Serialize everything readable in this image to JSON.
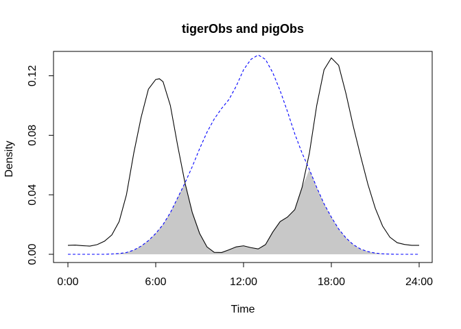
{
  "chart_data": {
    "type": "line",
    "title": "tigerObs and pigObs",
    "xlabel": "Time",
    "ylabel": "Density",
    "xlim": [
      0,
      24
    ],
    "ylim": [
      0,
      0.135
    ],
    "x_ticks": [
      {
        "value": 0,
        "label": "0:00"
      },
      {
        "value": 6,
        "label": "6:00"
      },
      {
        "value": 12,
        "label": "12:00"
      },
      {
        "value": 18,
        "label": "18:00"
      },
      {
        "value": 24,
        "label": "24:00"
      }
    ],
    "y_ticks": [
      {
        "value": 0,
        "label": "0.00"
      },
      {
        "value": 0.04,
        "label": "0.04"
      },
      {
        "value": 0.08,
        "label": "0.08"
      },
      {
        "value": 0.12,
        "label": "0.12"
      }
    ],
    "grid": false,
    "overlap_fill": "#c8c8c8",
    "series": [
      {
        "key": "tiger",
        "color": "#000000",
        "style": "solid",
        "x": [
          0,
          0.5,
          1,
          1.5,
          2,
          2.5,
          3,
          3.5,
          4,
          4.5,
          5,
          5.5,
          6,
          6.25,
          6.5,
          7,
          7.5,
          8,
          8.5,
          9,
          9.5,
          10,
          10.5,
          11,
          11.5,
          12,
          12.5,
          13,
          13.5,
          14,
          14.5,
          15,
          15.5,
          16,
          16.5,
          17,
          17.5,
          18,
          18.5,
          19,
          19.5,
          20,
          20.5,
          21,
          21.5,
          22,
          22.5,
          23,
          23.5,
          24
        ],
        "y": [
          0.006,
          0.0062,
          0.0058,
          0.0055,
          0.0065,
          0.0088,
          0.013,
          0.022,
          0.04,
          0.068,
          0.092,
          0.111,
          0.1175,
          0.118,
          0.116,
          0.1,
          0.073,
          0.048,
          0.028,
          0.014,
          0.005,
          0.0013,
          0.0012,
          0.003,
          0.005,
          0.0057,
          0.0045,
          0.0036,
          0.0065,
          0.015,
          0.022,
          0.025,
          0.03,
          0.045,
          0.068,
          0.1,
          0.124,
          0.132,
          0.127,
          0.108,
          0.086,
          0.066,
          0.047,
          0.031,
          0.019,
          0.0115,
          0.0078,
          0.0066,
          0.006,
          0.006
        ]
      },
      {
        "key": "pig",
        "color": "#0000ff",
        "style": "dashed",
        "x": [
          0,
          0.5,
          1,
          1.5,
          2,
          2.5,
          3,
          3.5,
          4,
          4.5,
          5,
          5.5,
          6,
          6.5,
          7,
          7.5,
          8,
          8.5,
          9,
          9.5,
          10,
          10.5,
          11,
          11.5,
          12,
          12.5,
          13,
          13.5,
          14,
          14.5,
          15,
          15.5,
          16,
          16.5,
          17,
          17.5,
          18,
          18.5,
          19,
          19.5,
          20,
          20.5,
          21,
          21.5,
          22,
          22.5,
          23,
          23.5,
          24
        ],
        "y": [
          0,
          0,
          0,
          0,
          0,
          0,
          0.0002,
          0.0005,
          0.0012,
          0.0028,
          0.0055,
          0.0092,
          0.014,
          0.02,
          0.028,
          0.038,
          0.048,
          0.059,
          0.071,
          0.082,
          0.091,
          0.098,
          0.104,
          0.113,
          0.124,
          0.131,
          0.134,
          0.131,
          0.122,
          0.11,
          0.096,
          0.081,
          0.068,
          0.057,
          0.045,
          0.034,
          0.025,
          0.017,
          0.011,
          0.0065,
          0.0035,
          0.0018,
          0.0008,
          0.0003,
          0.0001,
          0,
          0,
          0,
          0
        ]
      }
    ]
  }
}
